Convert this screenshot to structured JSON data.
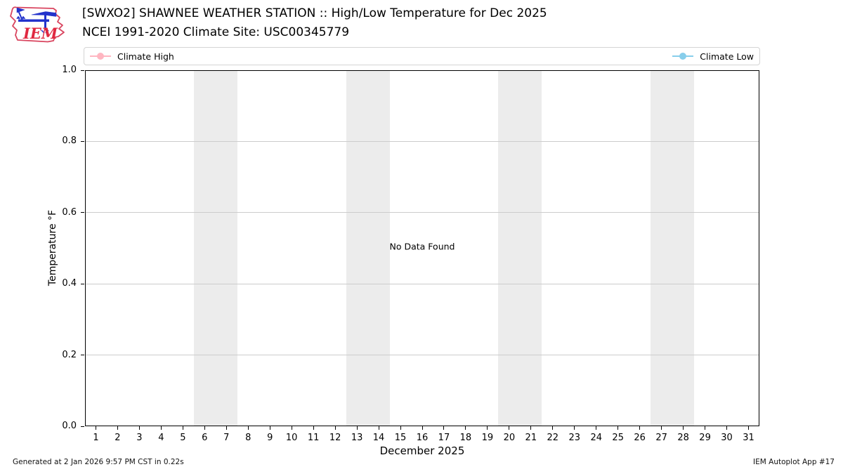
{
  "header": {
    "logo_text": "IEM",
    "title": "[SWXO2] SHAWNEE WEATHER STATION :: High/Low Temperature for Dec 2025",
    "subtitle": "NCEI 1991-2020 Climate Site: USC00345779"
  },
  "legend": {
    "items": [
      {
        "label": "Climate High",
        "color": "#ffb6c1"
      },
      {
        "label": "Climate Low",
        "color": "#87ceeb"
      }
    ]
  },
  "chart_data": {
    "type": "line",
    "title": "[SWXO2] SHAWNEE WEATHER STATION :: High/Low Temperature for Dec 2025",
    "subtitle": "NCEI 1991-2020 Climate Site: USC00345779",
    "xlabel": "December 2025",
    "ylabel": "Temperature °F",
    "annotation": "No Data Found",
    "series": [
      {
        "name": "Climate High",
        "color": "#ffb6c1",
        "x": [],
        "values": []
      },
      {
        "name": "Climate Low",
        "color": "#87ceeb",
        "x": [],
        "values": []
      }
    ],
    "xlim": [
      0.5,
      31.5
    ],
    "ylim": [
      0.0,
      1.0
    ],
    "xticks": [
      1,
      2,
      3,
      4,
      5,
      6,
      7,
      8,
      9,
      10,
      11,
      12,
      13,
      14,
      15,
      16,
      17,
      18,
      19,
      20,
      21,
      22,
      23,
      24,
      25,
      26,
      27,
      28,
      29,
      30,
      31
    ],
    "yticks": [
      0.0,
      0.2,
      0.4,
      0.6,
      0.8,
      1.0
    ],
    "grid": "horizontal",
    "legend_position": "top-expanded",
    "weekend_bands": [
      [
        5.5,
        7.5
      ],
      [
        12.5,
        14.5
      ],
      [
        19.5,
        21.5
      ],
      [
        26.5,
        28.5
      ]
    ],
    "band_color": "#ececec",
    "gridline_color": "#cccccc"
  },
  "footer": {
    "generated": "Generated at 2 Jan 2026 9:57 PM CST in 0.22s",
    "app": "IEM Autoplot App #17"
  }
}
